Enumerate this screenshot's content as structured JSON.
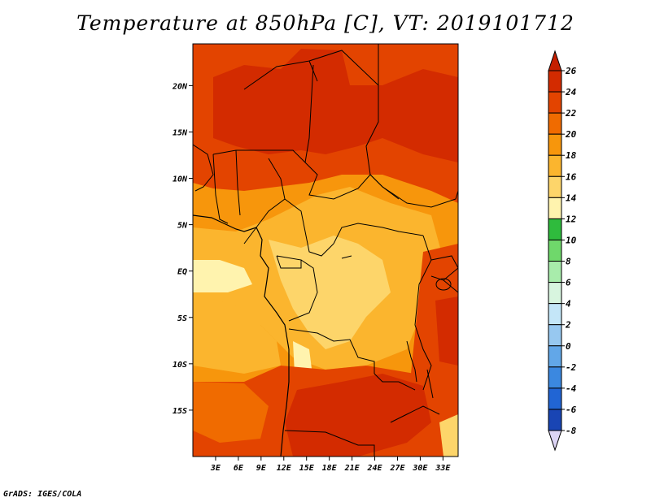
{
  "title": "Temperature at 850hPa [C], VT: 2019101712",
  "footer": "GrADS: IGES/COLA",
  "map": {
    "lat_ticks": [
      "20N",
      "15N",
      "10N",
      "5N",
      "EQ",
      "5S",
      "10S",
      "15S"
    ],
    "lon_ticks": [
      "3E",
      "6E",
      "9E",
      "12E",
      "15E",
      "18E",
      "21E",
      "24E",
      "27E",
      "30E",
      "33E"
    ],
    "lon_range": [
      0,
      35
    ],
    "lat_range": [
      -20,
      24.5
    ]
  },
  "colorbar": {
    "labels": [
      "26",
      "24",
      "22",
      "20",
      "18",
      "16",
      "14",
      "12",
      "10",
      "8",
      "6",
      "4",
      "2",
      "0",
      "-2",
      "-4",
      "-6",
      "-8"
    ],
    "colors": [
      "#d32b00",
      "#e34400",
      "#f06b00",
      "#f7960c",
      "#fbb52e",
      "#fdd56a",
      "#fff3ae",
      "#2fbb3d",
      "#6fd86b",
      "#a8ecab",
      "#d8f5df",
      "#c4e6f8",
      "#97c8f0",
      "#62a7e8",
      "#3b88e0",
      "#2165d4",
      "#1945b4",
      "#10268f",
      "#0c0a6e"
    ],
    "top_arrow_color": "#c41f00",
    "bottom_arrow_color": "#dcd4f4"
  },
  "field_colors": {
    "hot": "#d32b00",
    "warm": "#e34400",
    "orange": "#f06b00",
    "amber": "#f7960c",
    "mid": "#fbb52e",
    "light": "#fdd56a",
    "pale": "#fff3ae"
  }
}
